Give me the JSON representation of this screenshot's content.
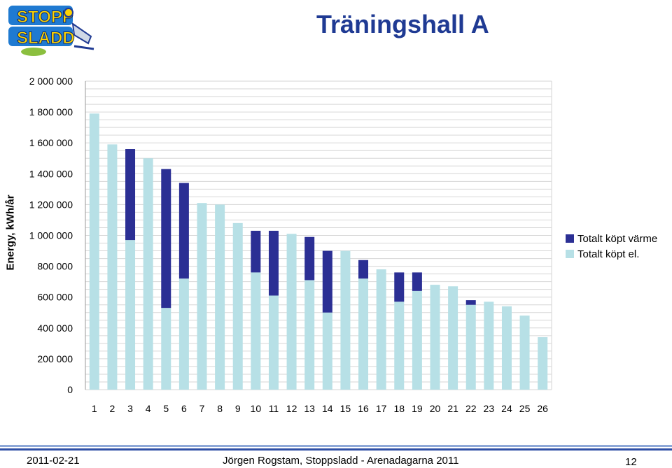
{
  "header": {
    "title": "Träningshall A",
    "logo_text_line1": "STOPP",
    "logo_text_line2": "SLADD"
  },
  "chart_data": {
    "type": "bar",
    "stacked": true,
    "title": "",
    "xlabel": "",
    "ylabel": "Energy, kWh/år",
    "ylim": [
      0,
      2000000
    ],
    "y_ticks": [
      "0",
      "200 000",
      "400 000",
      "600 000",
      "800 000",
      "1 000 000",
      "1 200 000",
      "1 400 000",
      "1 600 000",
      "1 800 000",
      "2 000 000"
    ],
    "grid": true,
    "legend_position": "right",
    "categories": [
      "1",
      "2",
      "3",
      "4",
      "5",
      "6",
      "7",
      "8",
      "9",
      "10",
      "11",
      "12",
      "13",
      "14",
      "15",
      "16",
      "17",
      "18",
      "19",
      "20",
      "21",
      "22",
      "23",
      "24",
      "25",
      "26"
    ],
    "series": [
      {
        "name": "Totalt köpt el.",
        "color": "#b7e0e6",
        "values": [
          1790000,
          1590000,
          970000,
          1500000,
          530000,
          720000,
          1210000,
          1200000,
          1080000,
          760000,
          610000,
          1010000,
          710000,
          500000,
          900000,
          720000,
          780000,
          570000,
          640000,
          680000,
          670000,
          550000,
          570000,
          540000,
          480000,
          340000
        ]
      },
      {
        "name": "Totalt köpt värme",
        "color": "#2b2f94",
        "values": [
          0,
          0,
          590000,
          0,
          900000,
          620000,
          0,
          0,
          0,
          270000,
          420000,
          0,
          280000,
          400000,
          0,
          120000,
          0,
          190000,
          120000,
          0,
          0,
          30000,
          0,
          0,
          0,
          0
        ]
      }
    ],
    "legend": [
      "Totalt köpt värme",
      "Totalt köpt el."
    ]
  },
  "footer": {
    "date": "2011-02-21",
    "center": "Jörgen Rogstam,  Stoppsladd - Arenadagarna 2011",
    "page": "12"
  }
}
